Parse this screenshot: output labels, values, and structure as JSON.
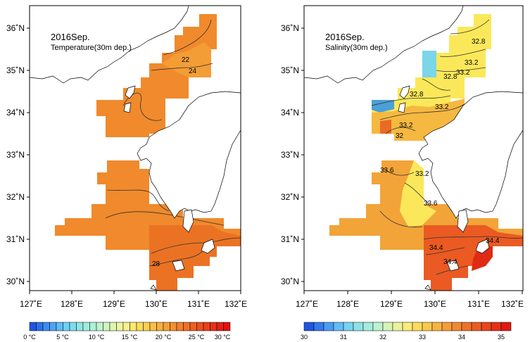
{
  "panels": [
    {
      "title": "2016Sep.",
      "subtitle": "Temperature(30m dep.)",
      "contour_labels": [
        "22",
        "24",
        "28"
      ],
      "colorbar_labels": [
        "0 °C",
        "5 °C",
        "10 °C",
        "15 °C",
        "20 °C",
        "25 °C",
        "30 °C"
      ]
    },
    {
      "title": "2016Sep.",
      "subtitle": "Salinity(30m dep.)",
      "contour_labels": [
        "32.8",
        "33.2",
        "32.8",
        "33.2",
        "32.8",
        "33.2",
        "33.2",
        "32",
        "33.6",
        "33.2",
        "33.6",
        "34.4",
        "34.4",
        "34.4"
      ],
      "colorbar_labels": [
        "30",
        "31",
        "32",
        "33",
        "34",
        "35"
      ]
    }
  ],
  "axes": {
    "lon_labels": [
      "127˚E",
      "128˚E",
      "129˚E",
      "130˚E",
      "131˚E",
      "132˚E"
    ],
    "lat_labels": [
      "36˚N",
      "35˚N",
      "34˚N",
      "33˚N",
      "32˚N",
      "31˚N",
      "30˚N"
    ]
  },
  "colors": {
    "land": "#ffffff",
    "coast": "#000000",
    "temp_field": "#f08a2c",
    "temp_dark": "#ea6f22",
    "temp_light": "#f4a13a",
    "sal_yellow": "#fbe85a",
    "sal_orange": "#f2a438",
    "sal_red": "#ea5a22"
  }
}
